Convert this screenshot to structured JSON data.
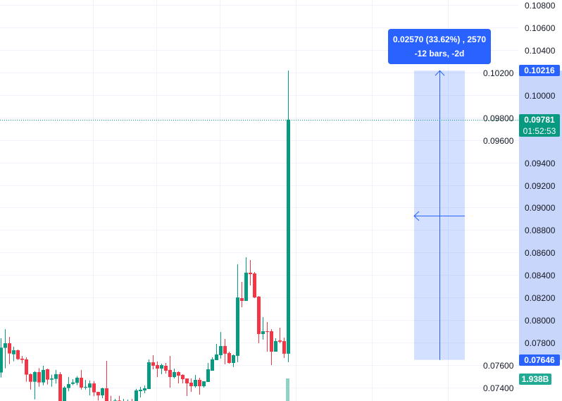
{
  "chart_data": {
    "type": "candlestick",
    "ylim": [
      0.0735,
      0.1085
    ],
    "y_ticks": [
      "0.10800",
      "0.10600",
      "0.10400",
      "0.10200",
      "0.10000",
      "0.09800",
      "0.09600",
      "0.09400",
      "0.09200",
      "0.09000",
      "0.08800",
      "0.08600",
      "0.08400",
      "0.08200",
      "0.08000",
      "0.07800",
      "0.07600",
      "0.07400"
    ],
    "grid": true,
    "colors": {
      "up": "#089981",
      "down": "#f23645",
      "measure": "#2962ff",
      "volume_up": "#8fd3c6"
    },
    "ohlc": [
      [
        0.07534,
        0.07838,
        0.0749,
        0.07755
      ],
      [
        0.07753,
        0.07919,
        0.07571,
        0.07794
      ],
      [
        0.07794,
        0.07851,
        0.07609,
        0.07703
      ],
      [
        0.07696,
        0.07763,
        0.07634,
        0.07732
      ],
      [
        0.07732,
        0.07738,
        0.07646,
        0.07653
      ],
      [
        0.07657,
        0.07682,
        0.07615,
        0.07646
      ],
      [
        0.07651,
        0.07669,
        0.07452,
        0.07515
      ],
      [
        0.07519,
        0.07525,
        0.07383,
        0.07452
      ],
      [
        0.07452,
        0.07546,
        0.07295,
        0.07538
      ],
      [
        0.07538,
        0.07573,
        0.07408,
        0.07446
      ],
      [
        0.07446,
        0.07594,
        0.07421,
        0.07557
      ],
      [
        0.07563,
        0.07569,
        0.07427,
        0.07471
      ],
      [
        0.07471,
        0.07515,
        0.07408,
        0.07481
      ],
      [
        0.07477,
        0.07557,
        0.07435,
        0.07519
      ],
      [
        0.07519,
        0.07538,
        0.0723,
        0.07254
      ],
      [
        0.07254,
        0.07412,
        0.0723,
        0.074
      ],
      [
        0.07396,
        0.07494,
        0.07368,
        0.07431
      ],
      [
        0.07433,
        0.07475,
        0.07421,
        0.07446
      ],
      [
        0.07442,
        0.07502,
        0.07421,
        0.07488
      ],
      [
        0.07488,
        0.07557,
        0.07383,
        0.074
      ],
      [
        0.074,
        0.07469,
        0.07383,
        0.07406
      ],
      [
        0.074,
        0.07463,
        0.07331,
        0.07437
      ],
      [
        0.07437,
        0.07458,
        0.07323,
        0.07358
      ],
      [
        0.07362,
        0.07362,
        0.07285,
        0.07331
      ],
      [
        0.07331,
        0.074,
        0.07306,
        0.07394
      ],
      [
        0.07394,
        0.07638,
        0.0724,
        0.0726
      ],
      [
        0.0727,
        0.07327,
        0.0723,
        0.0725
      ],
      [
        0.07275,
        0.073,
        0.0726,
        0.07285
      ],
      [
        0.07285,
        0.07327,
        0.0725,
        0.0727
      ],
      [
        0.07265,
        0.073,
        0.0725,
        0.07275
      ],
      [
        0.0727,
        0.07293,
        0.0725,
        0.07278
      ],
      [
        0.07278,
        0.073,
        0.0724,
        0.0726
      ],
      [
        0.0726,
        0.07389,
        0.0724,
        0.07375
      ],
      [
        0.07368,
        0.07406,
        0.07312,
        0.07381
      ],
      [
        0.07375,
        0.07419,
        0.0735,
        0.07394
      ],
      [
        0.07387,
        0.07651,
        0.07387,
        0.07625
      ],
      [
        0.07625,
        0.07688,
        0.07563,
        0.07594
      ],
      [
        0.076,
        0.07632,
        0.07494,
        0.07569
      ],
      [
        0.07569,
        0.07613,
        0.07519,
        0.076
      ],
      [
        0.07594,
        0.07619,
        0.07525,
        0.0755
      ],
      [
        0.07557,
        0.07682,
        0.074,
        0.07494
      ],
      [
        0.07494,
        0.07569,
        0.07481,
        0.07538
      ],
      [
        0.07538,
        0.07544,
        0.07437,
        0.07506
      ],
      [
        0.07513,
        0.07519,
        0.07437,
        0.07475
      ],
      [
        0.07481,
        0.07481,
        0.07325,
        0.07437
      ],
      [
        0.07444,
        0.07481,
        0.07362,
        0.07412
      ],
      [
        0.07412,
        0.07513,
        0.074,
        0.07469
      ],
      [
        0.07469,
        0.07488,
        0.07337,
        0.07412
      ],
      [
        0.07412,
        0.07456,
        0.074,
        0.07456
      ],
      [
        0.0745,
        0.07619,
        0.0745,
        0.07563
      ],
      [
        0.0755,
        0.07669,
        0.0755,
        0.07651
      ],
      [
        0.07644,
        0.07788,
        0.07644,
        0.07694
      ],
      [
        0.07688,
        0.07894,
        0.07657,
        0.07769
      ],
      [
        0.07769,
        0.07832,
        0.07607,
        0.07701
      ],
      [
        0.07707,
        0.07719,
        0.07613,
        0.07619
      ],
      [
        0.07619,
        0.07694,
        0.07582,
        0.07688
      ],
      [
        0.07682,
        0.08496,
        0.07625,
        0.08201
      ],
      [
        0.08195,
        0.08339,
        0.08114,
        0.0817
      ],
      [
        0.0817,
        0.08558,
        0.0817,
        0.08421
      ],
      [
        0.08421,
        0.08533,
        0.08308,
        0.08408
      ],
      [
        0.08414,
        0.08427,
        0.08195,
        0.08201
      ],
      [
        0.08208,
        0.08214,
        0.07794,
        0.07876
      ],
      [
        0.07876,
        0.08026,
        0.07826,
        0.07901
      ],
      [
        0.07901,
        0.07982,
        0.07719,
        0.07894
      ],
      [
        0.07901,
        0.07919,
        0.076,
        0.07719
      ],
      [
        0.07719,
        0.07838,
        0.07719,
        0.07813
      ],
      [
        0.07819,
        0.07932,
        0.07794,
        0.07807
      ],
      [
        0.07813,
        0.07844,
        0.07663,
        0.07701
      ],
      [
        0.07701,
        0.10216,
        0.07625,
        0.09781
      ]
    ],
    "last_price": "0.09781",
    "countdown": "01:52:53",
    "volume_label": "1.938B",
    "measure": {
      "high_label": "0.10216",
      "low_label": "0.07646",
      "high": 0.10216,
      "low": 0.07646,
      "line1": "0.02570 (33.62%) , 2570",
      "line2": "-12 bars, -2d"
    }
  }
}
